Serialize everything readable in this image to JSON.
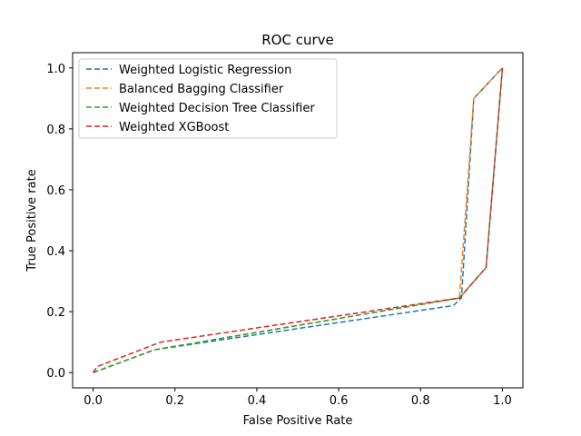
{
  "chart_data": {
    "type": "line",
    "title": "ROC curve",
    "xlabel": "False Positive Rate",
    "ylabel": "True Positive rate",
    "xlim": [
      -0.05,
      1.05
    ],
    "ylim": [
      -0.05,
      1.05
    ],
    "xticks": [
      0.0,
      0.2,
      0.4,
      0.6,
      0.8,
      1.0
    ],
    "yticks": [
      0.0,
      0.2,
      0.4,
      0.6,
      0.8,
      1.0
    ],
    "xtick_labels": [
      "0.0",
      "0.2",
      "0.4",
      "0.6",
      "0.8",
      "1.0"
    ],
    "ytick_labels": [
      "0.0",
      "0.2",
      "0.4",
      "0.6",
      "0.8",
      "1.0"
    ],
    "grid": false,
    "legend_position": "top-left",
    "line_style": "dashed",
    "series": [
      {
        "name": "Weighted Logistic Regression",
        "color": "#1f77b4",
        "points": [
          [
            0.0,
            0.0
          ],
          [
            0.15,
            0.075
          ],
          [
            0.88,
            0.22
          ],
          [
            0.9,
            0.245
          ],
          [
            0.93,
            0.9
          ],
          [
            1.0,
            1.0
          ]
        ]
      },
      {
        "name": "Balanced Bagging Classifier",
        "color": "#ff7f0e",
        "points": [
          [
            0.0,
            0.0
          ],
          [
            0.15,
            0.075
          ],
          [
            0.895,
            0.245
          ],
          [
            0.93,
            0.9
          ],
          [
            1.0,
            1.0
          ]
        ]
      },
      {
        "name": "Weighted Decision Tree Classifier",
        "color": "#2ca02c",
        "points": [
          [
            0.0,
            0.0
          ],
          [
            0.15,
            0.075
          ],
          [
            0.895,
            0.245
          ],
          [
            0.96,
            0.345
          ],
          [
            1.0,
            1.0
          ]
        ]
      },
      {
        "name": "Weighted XGBoost",
        "color": "#d62728",
        "points": [
          [
            0.0,
            0.0
          ],
          [
            0.01,
            0.02
          ],
          [
            0.165,
            0.1
          ],
          [
            0.895,
            0.245
          ],
          [
            0.96,
            0.345
          ],
          [
            1.0,
            1.0
          ]
        ]
      }
    ]
  }
}
